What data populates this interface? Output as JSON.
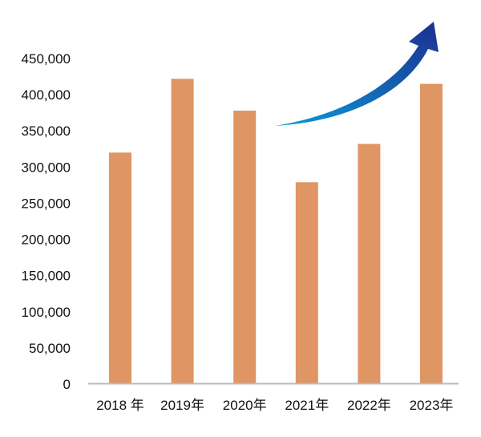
{
  "chart_data": {
    "type": "bar",
    "title": "",
    "xlabel": "",
    "ylabel": "",
    "categories": [
      "2018 年",
      "2019年",
      "2020年",
      "2021年",
      "2022年",
      "2023年"
    ],
    "values": [
      320000,
      422000,
      378000,
      279000,
      332000,
      415000
    ],
    "ylim": [
      0,
      450000
    ],
    "yticks": [
      0,
      50000,
      100000,
      150000,
      200000,
      250000,
      300000,
      350000,
      400000,
      450000
    ],
    "ytick_labels": [
      "0",
      "50,000",
      "100,000",
      "150,000",
      "200,000",
      "250,000",
      "300,000",
      "350,000",
      "400,000",
      "450,000"
    ],
    "grid": false,
    "annotation": "upward-trend-arrow",
    "colors": {
      "bar": "#e09565",
      "axis": "#bbbbbb",
      "arrow_start": "#0a9ad8",
      "arrow_end": "#1d2f8f"
    }
  }
}
